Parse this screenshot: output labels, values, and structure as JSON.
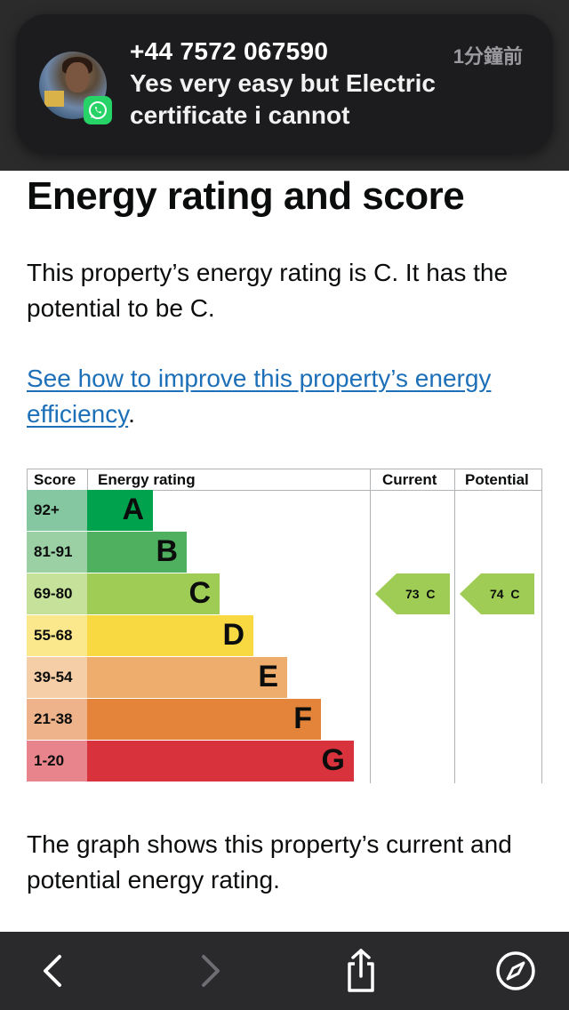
{
  "notification": {
    "sender": "+44 7572 067590",
    "time": "1分鐘前",
    "message": "Yes very easy but Electric certificate i cannot",
    "app_icon": "whatsapp-icon"
  },
  "page": {
    "heading": "Energy rating and score",
    "intro": "This property’s energy rating is C. It has the potential to be C.",
    "link_text": "See how to improve this property’s energy efficiency",
    "link_suffix": ".",
    "graph_note": "The graph shows this property’s current and potential energy rating."
  },
  "chart_data": {
    "type": "table",
    "columns": [
      "Score",
      "Energy rating",
      "Current",
      "Potential"
    ],
    "bands": [
      {
        "score": "92+",
        "letter": "A",
        "color": "#00a24d",
        "score_bg": "#84c7a0"
      },
      {
        "score": "81-91",
        "letter": "B",
        "color": "#4fb060",
        "score_bg": "#9bd0a5"
      },
      {
        "score": "69-80",
        "letter": "C",
        "color": "#9fcc54",
        "score_bg": "#c6e29a"
      },
      {
        "score": "55-68",
        "letter": "D",
        "color": "#f8d941",
        "score_bg": "#fbe88d"
      },
      {
        "score": "39-54",
        "letter": "E",
        "color": "#efad6d",
        "score_bg": "#f5cda6"
      },
      {
        "score": "21-38",
        "letter": "F",
        "color": "#e4843a",
        "score_bg": "#eeb38a"
      },
      {
        "score": "1-20",
        "letter": "G",
        "color": "#d8323c",
        "score_bg": "#e8848b"
      }
    ],
    "current": {
      "score": 73,
      "letter": "C",
      "label": "73  C",
      "color": "#9fcc54"
    },
    "potential": {
      "score": 74,
      "letter": "C",
      "label": "74  C",
      "color": "#9fcc54"
    }
  },
  "toolbar": {
    "buttons": [
      "back-icon",
      "forward-icon",
      "share-icon",
      "compass-icon"
    ]
  }
}
